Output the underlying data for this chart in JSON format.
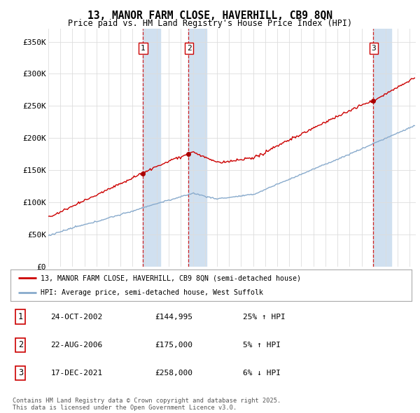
{
  "title": "13, MANOR FARM CLOSE, HAVERHILL, CB9 8QN",
  "subtitle": "Price paid vs. HM Land Registry's House Price Index (HPI)",
  "ylabel_ticks": [
    "£0",
    "£50K",
    "£100K",
    "£150K",
    "£200K",
    "£250K",
    "£300K",
    "£350K"
  ],
  "ytick_values": [
    0,
    50000,
    100000,
    150000,
    200000,
    250000,
    300000,
    350000
  ],
  "ylim": [
    0,
    370000
  ],
  "xlim_start": 1995.0,
  "xlim_end": 2025.5,
  "sale_dates": [
    2002.82,
    2006.64,
    2021.96
  ],
  "sale_prices": [
    144995,
    175000,
    258000
  ],
  "sale_labels": [
    "1",
    "2",
    "3"
  ],
  "shade_color": "#d0e0f0",
  "vline_color": "#cc0000",
  "dot_color": "#aa0000",
  "red_line_color": "#cc0000",
  "blue_line_color": "#88aacc",
  "legend_label_red": "13, MANOR FARM CLOSE, HAVERHILL, CB9 8QN (semi-detached house)",
  "legend_label_blue": "HPI: Average price, semi-detached house, West Suffolk",
  "table_entries": [
    {
      "num": "1",
      "date": "24-OCT-2002",
      "price": "£144,995",
      "change": "25% ↑ HPI"
    },
    {
      "num": "2",
      "date": "22-AUG-2006",
      "price": "£175,000",
      "change": "5% ↑ HPI"
    },
    {
      "num": "3",
      "date": "17-DEC-2021",
      "price": "£258,000",
      "change": "6% ↓ HPI"
    }
  ],
  "footer": "Contains HM Land Registry data © Crown copyright and database right 2025.\nThis data is licensed under the Open Government Licence v3.0.",
  "background_color": "#ffffff",
  "grid_color": "#dddddd"
}
